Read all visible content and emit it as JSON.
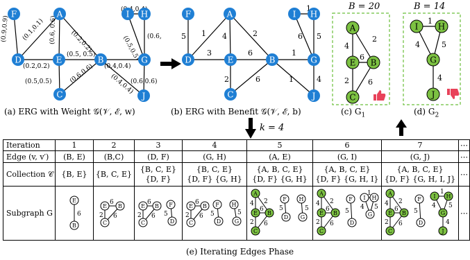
{
  "panel_a": {
    "caption": "(a) ERG with Weight 𝒢(𝒱, ℰ, w)",
    "nodes": [
      "F",
      "A",
      "I",
      "H",
      "D",
      "E",
      "B",
      "G",
      "C",
      "J"
    ],
    "edge_labels": [
      "(0.9,0.9)",
      "(0.1,0.1)",
      "(0.2,0.2)",
      "(0.6, 0.6)",
      "(0.2,0.2)",
      "(0.5, 0.5)",
      "(0.4,0.4)",
      "(0.5,0.5)",
      "(0.6,0.6)",
      "(0.4,0.4)",
      "(0.5,0.5)",
      "(0.6,0.6)",
      "(0.4,0.4)",
      "(0.6,0.6)"
    ]
  },
  "panel_b": {
    "caption": "(b) ERG with Benefit 𝒢(𝒱, ℰ, b)",
    "nodes": [
      "F",
      "A",
      "I",
      "H",
      "D",
      "E",
      "B",
      "G",
      "C",
      "J"
    ],
    "edge_labels": [
      "5",
      "1",
      "4",
      "2",
      "3",
      "6",
      "1",
      "1",
      "5",
      "2",
      "6",
      "6",
      "1",
      "4"
    ]
  },
  "panel_c": {
    "title": "B = 20",
    "caption": "(c) G",
    "sub": "1",
    "nodes": [
      "A",
      "E",
      "B",
      "C"
    ],
    "edge_labels": [
      "2",
      "4",
      "6",
      "2",
      "6"
    ],
    "icon": "thumbs-up-icon"
  },
  "panel_d": {
    "title": "B = 14",
    "caption": "(d) G",
    "sub": "2",
    "nodes": [
      "I",
      "H",
      "G",
      "J"
    ],
    "edge_labels": [
      "1",
      "4",
      "5",
      "4"
    ],
    "icon": "thumbs-down-icon"
  },
  "k_label": "k = 4",
  "table": {
    "row_labels": [
      "Iteration",
      "Edge (v, v′)",
      "Collection 𝒞",
      "Subgraph G"
    ],
    "iterations": [
      "1",
      "2",
      "3",
      "4",
      "5",
      "6",
      "7",
      "⋯"
    ],
    "edges": [
      "(B, E)",
      "(B,C)",
      "(D, F)",
      "(G, H)",
      "(A, E)",
      "(G, I)",
      "(G, J)",
      "⋯"
    ],
    "collections": [
      [
        "{B, E}"
      ],
      [
        "{B, C, E}"
      ],
      [
        "{B, C, E}",
        "{D, F}"
      ],
      [
        "{B, C, E}",
        "{D, F} {G, H}"
      ],
      [
        "{A, B, C, E}",
        "{D, F} {G, H}"
      ],
      [
        "{A, B, C, E}",
        "{D, F} {G, H, I}"
      ],
      [
        "{A, B, C, E}",
        "{D, F} {G, H, I, J}"
      ],
      [
        "⋯"
      ]
    ]
  },
  "bottom_caption": "(e) Iterating Edges Phase",
  "colors": {
    "node_fill": "#1f7fd4",
    "node_text": "#ffffff",
    "green": "#7cc142",
    "dash_border": "#6abf3a",
    "thumb_red": "#e8425a"
  }
}
